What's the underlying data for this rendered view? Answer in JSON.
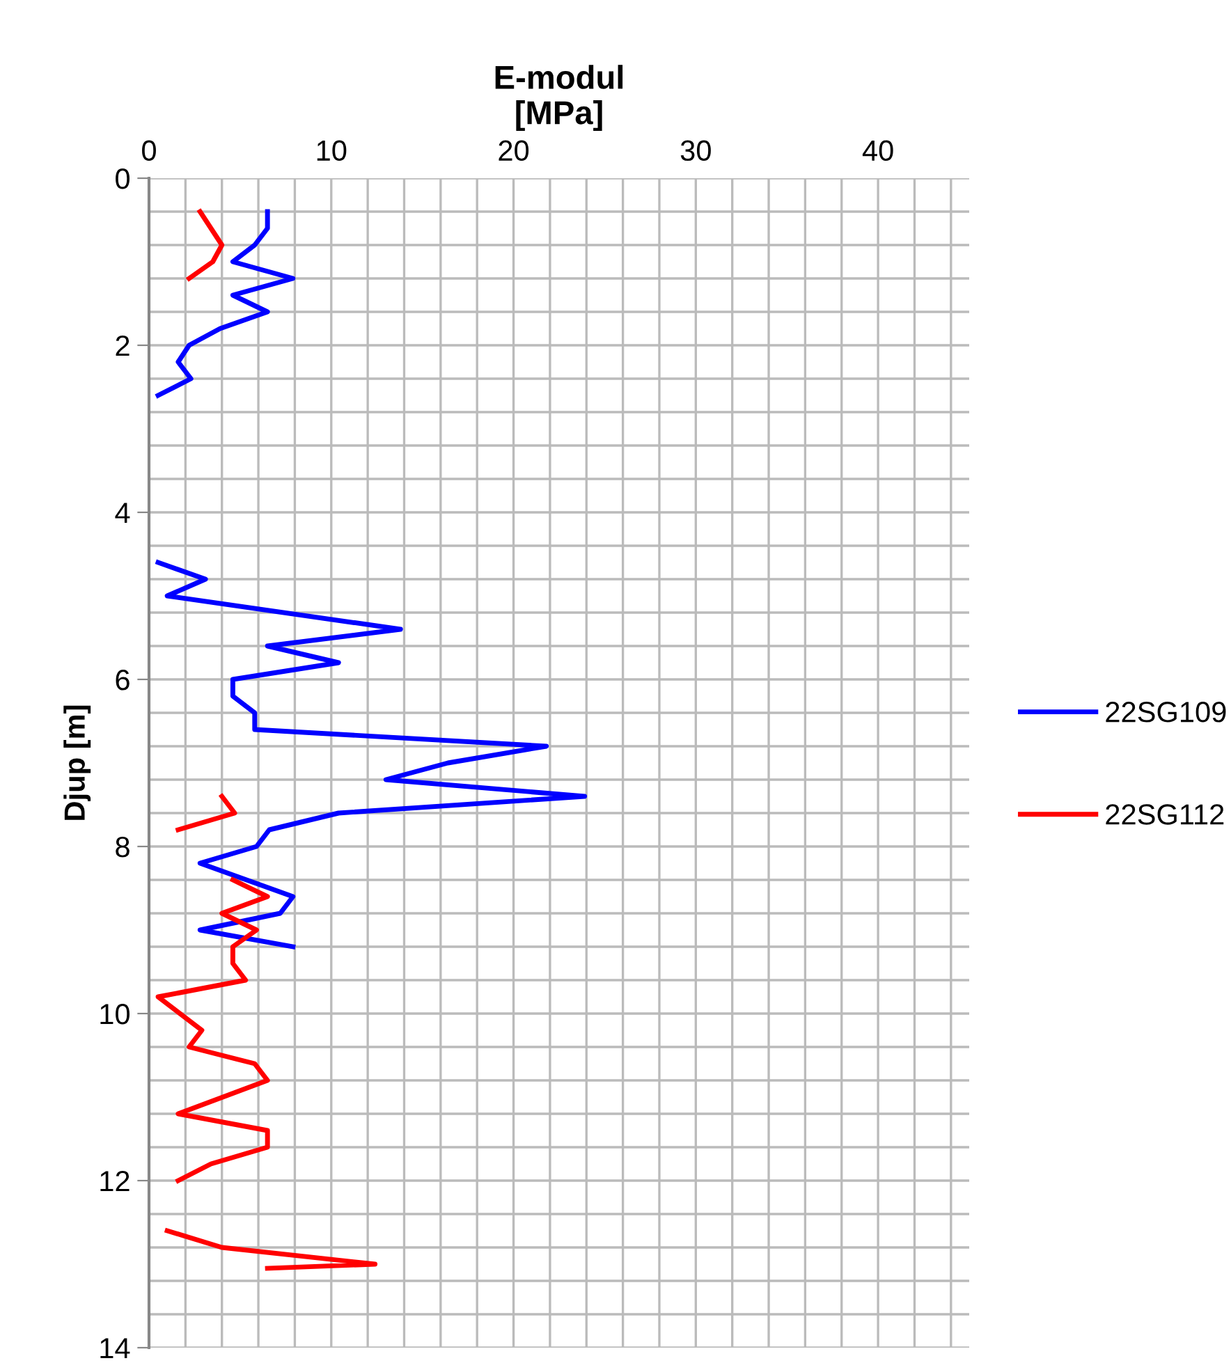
{
  "chart_data": {
    "type": "line",
    "orientation": "horizontal",
    "xlabel": "E-modul\n[MPa]",
    "ylabel": "Djup [m]",
    "xlim": [
      0,
      45
    ],
    "xticks": [
      0,
      {
        "value": 2,
        "label": null
      },
      {
        "value": 4,
        "label": null
      },
      {
        "value": 6,
        "label": null
      },
      {
        "value": 8,
        "label": null
      },
      10,
      {
        "value": 12,
        "label": null
      },
      {
        "value": 14,
        "label": null
      },
      {
        "value": 16,
        "label": null
      },
      {
        "value": 18,
        "label": null
      },
      20,
      {
        "value": 22,
        "label": null
      },
      {
        "value": 24,
        "label": null
      },
      {
        "value": 26,
        "label": null
      },
      {
        "value": 28,
        "label": null
      },
      30,
      {
        "value": 32,
        "label": null
      },
      {
        "value": 34,
        "label": null
      },
      {
        "value": 36,
        "label": null
      },
      {
        "value": 38,
        "label": null
      },
      40,
      {
        "value": 42,
        "label": null
      },
      {
        "value": 44,
        "label": null
      }
    ],
    "ylim": [
      14,
      0
    ],
    "yticks": [
      0,
      2,
      4,
      6,
      8,
      10,
      12,
      14
    ],
    "grid": true,
    "legend": "right",
    "marker": "none",
    "line_style": "solid",
    "series": [
      {
        "name": "22SG109",
        "color": "#0000ff",
        "x": [
          0.4,
          0.6,
          0.8,
          1.0,
          1.2,
          1.4,
          1.6,
          1.8,
          2.0,
          2.2,
          2.4,
          2.6,
          3.6,
          4.6,
          4.8,
          5.0,
          5.4,
          5.6,
          5.8,
          6.0,
          6.2,
          6.4,
          6.6,
          6.8,
          7.0,
          7.2,
          7.4,
          7.6,
          7.8,
          8.0,
          8.2,
          8.6,
          8.8,
          9.0,
          9.2
        ],
        "values": [
          6.5,
          6.5,
          5.8,
          4.6,
          7.9,
          4.6,
          6.5,
          3.9,
          2.2,
          1.6,
          2.3,
          0.5,
          null,
          0.5,
          3.1,
          1.0,
          13.8,
          6.5,
          10.4,
          4.6,
          4.6,
          5.8,
          5.8,
          21.8,
          16.4,
          13.0,
          23.9,
          10.4,
          6.6,
          5.9,
          2.8,
          7.9,
          7.2,
          2.8,
          7.9
        ]
      },
      {
        "name": "22SG112",
        "color": "#ff0000",
        "x": [
          0.4,
          0.8,
          1.0,
          1.2,
          4.0,
          7.4,
          7.6,
          7.8,
          8.1,
          8.4,
          8.6,
          8.8,
          9.0,
          9.2,
          9.4,
          9.6,
          9.7,
          9.8,
          10.2,
          10.4,
          10.6,
          10.8,
          11.2,
          11.4,
          11.6,
          11.8,
          12.0,
          12.3,
          12.6,
          12.8,
          13.0,
          13.05
        ],
        "values": [
          2.8,
          4.0,
          3.5,
          2.2,
          null,
          4.0,
          4.7,
          1.6,
          null,
          4.6,
          6.5,
          4.0,
          5.9,
          4.6,
          4.6,
          5.3,
          2.9,
          0.5,
          2.9,
          2.2,
          5.8,
          6.5,
          1.6,
          6.5,
          6.5,
          3.4,
          1.6,
          null,
          1.0,
          4.0,
          12.4,
          6.5
        ]
      }
    ]
  }
}
